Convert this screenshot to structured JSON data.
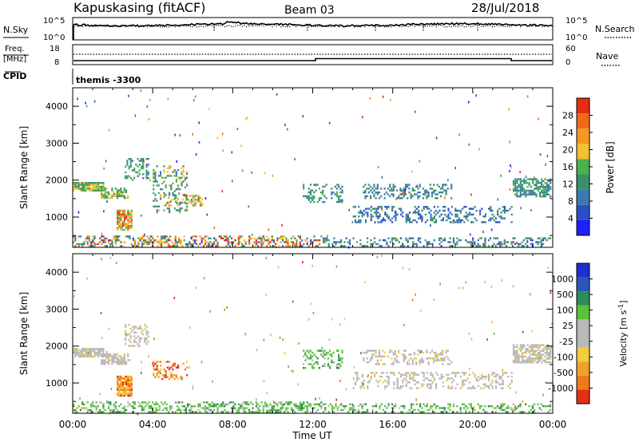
{
  "header": {
    "station": "Kapuskasing (fitACF)",
    "beam": "Beam 03",
    "date": "28/Jul/2018"
  },
  "noise_panel": {
    "left_label": "N.Sky",
    "right_label": "N.Search",
    "left_ticks": [
      "10^5",
      "10^0"
    ],
    "right_ticks": [
      "10^5",
      "10^0"
    ]
  },
  "freq_panel": {
    "left_label_1": "Freq.",
    "left_label_2": "[MHz]",
    "right_label": "Nave",
    "left_ticks": [
      "18",
      "8"
    ],
    "right_ticks": [
      "60",
      "0"
    ]
  },
  "cpid": {
    "label": "CPID",
    "text": "themis -3300"
  },
  "colors": {
    "power": [
      "#1f1fff",
      "#2b4fc8",
      "#3b7ab0",
      "#3a8f6a",
      "#4caf50",
      "#f2c12e",
      "#f29a1f",
      "#ef6a16",
      "#e62d12"
    ],
    "velocity_pos": [
      "#1f2fd1",
      "#2b55b8",
      "#2f8a5a",
      "#59c23a"
    ],
    "velocity_neutral": "#b8b8b8",
    "velocity_neg": [
      "#f2cc3a",
      "#f2a12a",
      "#ef7a1a",
      "#e23010"
    ]
  },
  "chart_data": [
    {
      "type": "heatmap",
      "name": "power-panel",
      "xlabel": "",
      "ylabel": "Slant Range [km]",
      "xlim": [
        0,
        24
      ],
      "ylim": [
        180,
        4500
      ],
      "yticks": [
        1000,
        2000,
        3000,
        4000
      ],
      "colorbar": {
        "label": "Power [dB]",
        "ticks": [
          4,
          8,
          12,
          16,
          20,
          24,
          28
        ],
        "range": [
          0,
          32
        ]
      },
      "regions": [
        {
          "t": [
            0.0,
            1.6
          ],
          "r": [
            1700,
            1950
          ],
          "level": [
            3,
            5
          ],
          "density": 0.85
        },
        {
          "t": [
            1.4,
            2.8
          ],
          "r": [
            1500,
            1800
          ],
          "level": [
            3,
            5
          ],
          "density": 0.7
        },
        {
          "t": [
            2.2,
            3.0
          ],
          "r": [
            650,
            1200
          ],
          "level": [
            4,
            8
          ],
          "density": 0.8
        },
        {
          "t": [
            2.6,
            3.8
          ],
          "r": [
            2000,
            2600
          ],
          "level": [
            2,
            4
          ],
          "density": 0.4
        },
        {
          "t": [
            4.0,
            5.8
          ],
          "r": [
            1100,
            2400
          ],
          "level": [
            2,
            5
          ],
          "density": 0.25
        },
        {
          "t": [
            4.5,
            6.5
          ],
          "r": [
            1300,
            1600
          ],
          "level": [
            3,
            6
          ],
          "density": 0.35
        },
        {
          "t": [
            0.0,
            12.5
          ],
          "r": [
            180,
            500
          ],
          "level": [
            1,
            8
          ],
          "density": 0.45
        },
        {
          "t": [
            11.5,
            13.5
          ],
          "r": [
            1400,
            1900
          ],
          "level": [
            2,
            4
          ],
          "density": 0.3
        },
        {
          "t": [
            14.5,
            19.0
          ],
          "r": [
            1500,
            1900
          ],
          "level": [
            2,
            3
          ],
          "density": 0.35
        },
        {
          "t": [
            14.0,
            22.0
          ],
          "r": [
            850,
            1300
          ],
          "level": [
            1,
            3
          ],
          "density": 0.3
        },
        {
          "t": [
            12.5,
            23.9
          ],
          "r": [
            180,
            450
          ],
          "level": [
            1,
            4
          ],
          "density": 0.3
        },
        {
          "t": [
            22.0,
            23.9
          ],
          "r": [
            1550,
            2050
          ],
          "level": [
            2,
            4
          ],
          "density": 0.7
        }
      ]
    },
    {
      "type": "heatmap",
      "name": "velocity-panel",
      "xlabel": "Time UT",
      "ylabel": "Slant Range [km]",
      "xlim": [
        0,
        24
      ],
      "ylim": [
        180,
        4500
      ],
      "yticks": [
        1000,
        2000,
        3000,
        4000
      ],
      "xticks": [
        "00:00",
        "04:00",
        "08:00",
        "12:00",
        "16:00",
        "20:00",
        "00:00"
      ],
      "colorbar": {
        "label": "Velocity [m s^-1]",
        "ticks": [
          "1000",
          "500",
          "100",
          "25",
          "-25",
          "-100",
          "-500",
          "-1000"
        ]
      },
      "regions": [
        {
          "t": [
            0.0,
            1.6
          ],
          "r": [
            1700,
            1950
          ],
          "cat": "neutral",
          "density": 0.85
        },
        {
          "t": [
            1.4,
            2.8
          ],
          "r": [
            1500,
            1800
          ],
          "cat": "neutral",
          "density": 0.7
        },
        {
          "t": [
            2.2,
            3.0
          ],
          "r": [
            650,
            1200
          ],
          "cat": "neg",
          "density": 0.85
        },
        {
          "t": [
            2.6,
            3.8
          ],
          "r": [
            2000,
            2600
          ],
          "cat": "neutral",
          "density": 0.4
        },
        {
          "t": [
            4.0,
            5.8
          ],
          "r": [
            1100,
            1600
          ],
          "cat": "neg",
          "density": 0.35
        },
        {
          "t": [
            0.0,
            12.5
          ],
          "r": [
            180,
            500
          ],
          "cat": "pos",
          "density": 0.45
        },
        {
          "t": [
            11.5,
            13.5
          ],
          "r": [
            1400,
            1900
          ],
          "cat": "pos",
          "density": 0.3
        },
        {
          "t": [
            14.5,
            19.0
          ],
          "r": [
            1500,
            1900
          ],
          "cat": "neutral",
          "density": 0.35
        },
        {
          "t": [
            14.0,
            22.0
          ],
          "r": [
            850,
            1300
          ],
          "cat": "neutral",
          "density": 0.3
        },
        {
          "t": [
            12.5,
            23.9
          ],
          "r": [
            180,
            450
          ],
          "cat": "pos",
          "density": 0.3
        },
        {
          "t": [
            22.0,
            23.9
          ],
          "r": [
            1550,
            2050
          ],
          "cat": "neutral",
          "density": 0.7
        }
      ]
    }
  ]
}
